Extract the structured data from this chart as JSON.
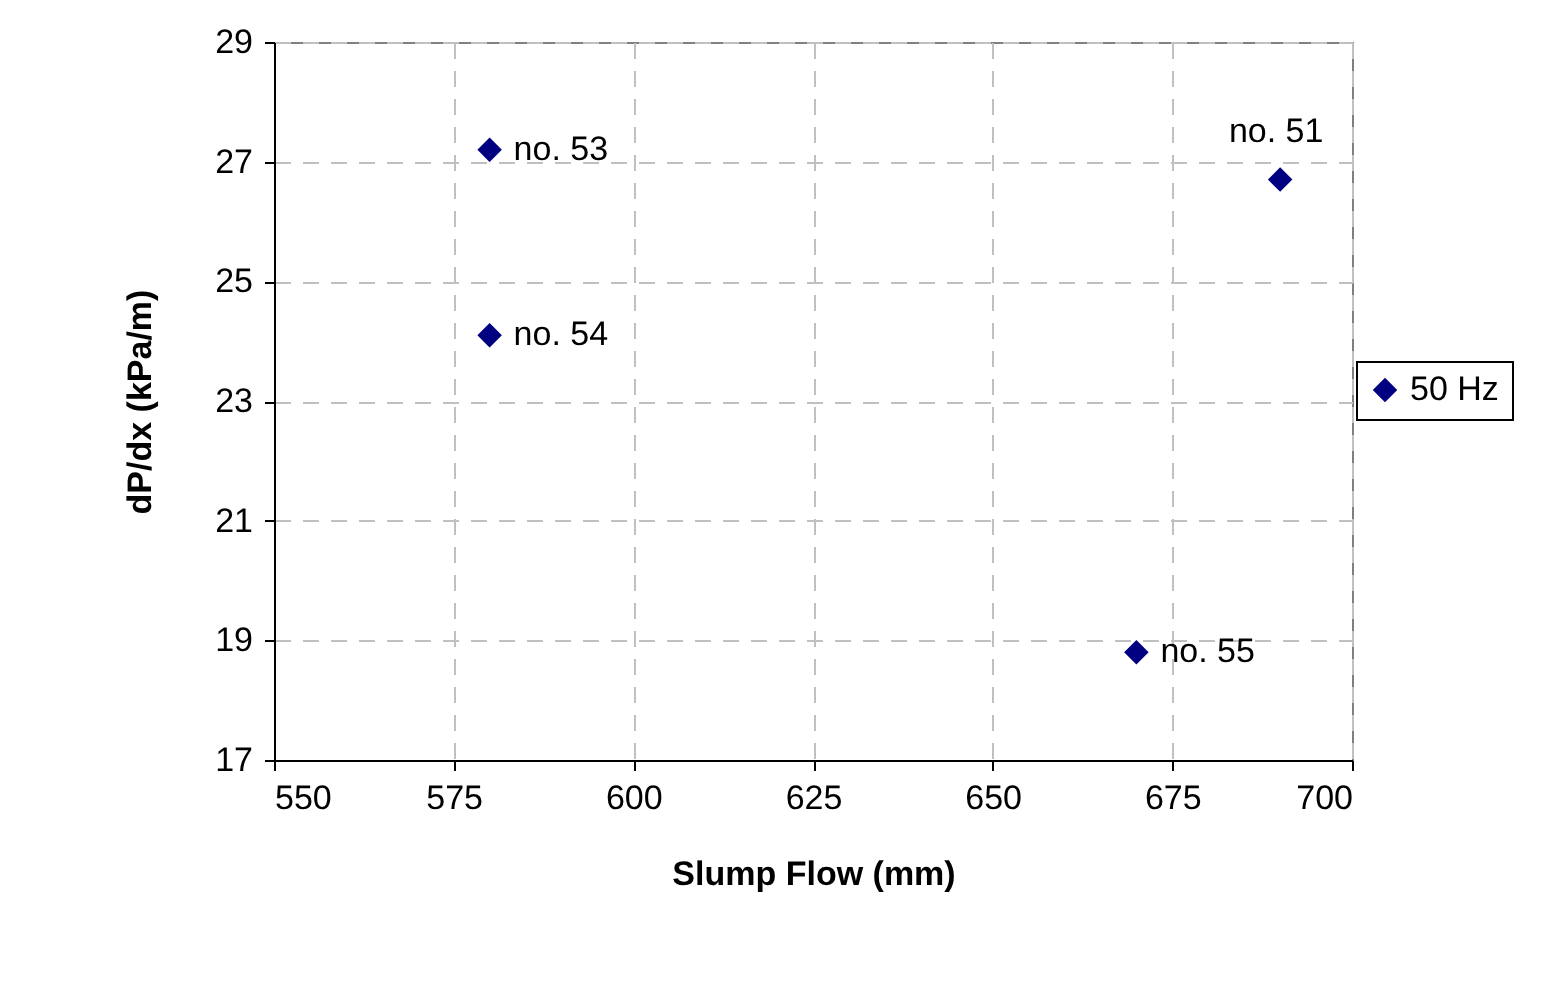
{
  "chart_data": {
    "type": "scatter",
    "xlabel": "Slump Flow (mm)",
    "ylabel": "dP/dx (kPa/m)",
    "x": [
      690,
      580,
      580,
      670
    ],
    "series": [
      {
        "name": "50 Hz",
        "color": "#000080",
        "values": [
          26.7,
          27.2,
          24.1,
          18.8
        ]
      }
    ],
    "xlim": [
      550,
      700
    ],
    "xticks": [
      550,
      575,
      600,
      625,
      650,
      675,
      700
    ],
    "ylim": [
      17,
      29
    ],
    "yticks": [
      17,
      19,
      21,
      23,
      25,
      27,
      29
    ],
    "grid": true,
    "legend": "right",
    "marker": "diamond",
    "annotations": [
      {
        "text": "no. 51",
        "x": 690,
        "y": 26.7
      },
      {
        "text": "no. 53",
        "x": 580,
        "y": 27.2
      },
      {
        "text": "no. 54",
        "x": 580,
        "y": 24.1
      },
      {
        "text": "no. 55",
        "x": 670,
        "y": 18.8
      }
    ]
  }
}
